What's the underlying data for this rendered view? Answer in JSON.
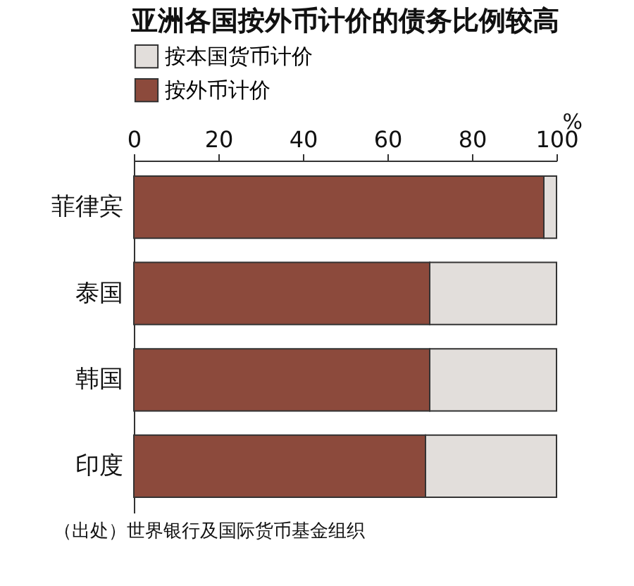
{
  "chart_data": {
    "type": "bar",
    "orientation": "horizontal",
    "stacked": true,
    "title": "亚洲各国按外币计价的债务比例较高",
    "xlabel": "%",
    "categories": [
      "菲律宾",
      "泰国",
      "韩国",
      "印度"
    ],
    "series": [
      {
        "name": "按外币计价",
        "color": "#8c4a3c",
        "values": [
          97,
          70,
          70,
          69
        ]
      },
      {
        "name": "按本国货币计价",
        "color": "#e2dedb",
        "values": [
          3,
          30,
          30,
          31
        ]
      }
    ],
    "xlim": [
      0,
      100
    ],
    "xticks": [
      0,
      20,
      40,
      60,
      80,
      100
    ],
    "grid": false,
    "legend": "top left",
    "annotations": [
      "（出处）世界银行及国际货币基金组织"
    ]
  }
}
